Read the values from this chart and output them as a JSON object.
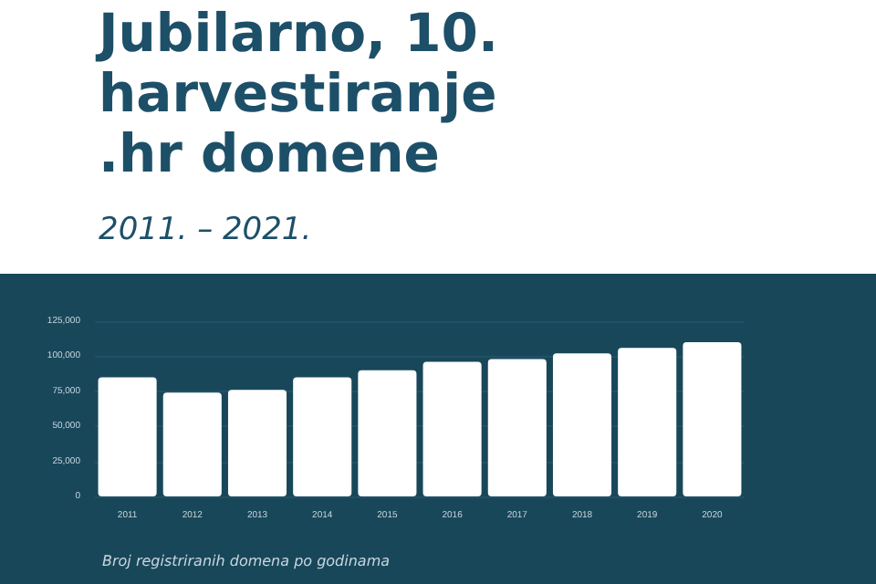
{
  "chart_data": {
    "type": "bar",
    "title": "Jubilarno, 10. harvestiranje .hr domene",
    "subtitle": "2011. – 2021.",
    "annotations": [
      "Broj registriranih domena po godinama"
    ],
    "categories": [
      "2011",
      "2012",
      "2013",
      "2014",
      "2015",
      "2016",
      "2017",
      "2018",
      "2019",
      "2020"
    ],
    "values": [
      85000,
      74000,
      76000,
      85000,
      90000,
      96000,
      98000,
      102000,
      106000,
      110000
    ],
    "color": "#ffffff",
    "ylim": [
      0,
      125000
    ],
    "yticks": [
      0,
      {
        "value": 25000,
        "label": "25,000"
      },
      {
        "value": 50000,
        "label": "50,000"
      },
      {
        "value": 75000,
        "label": "75,000"
      },
      {
        "value": 100000,
        "label": "100,000"
      },
      {
        "value": 125000,
        "label": "125,000"
      }
    ],
    "grid": "y",
    "legend": false
  }
}
